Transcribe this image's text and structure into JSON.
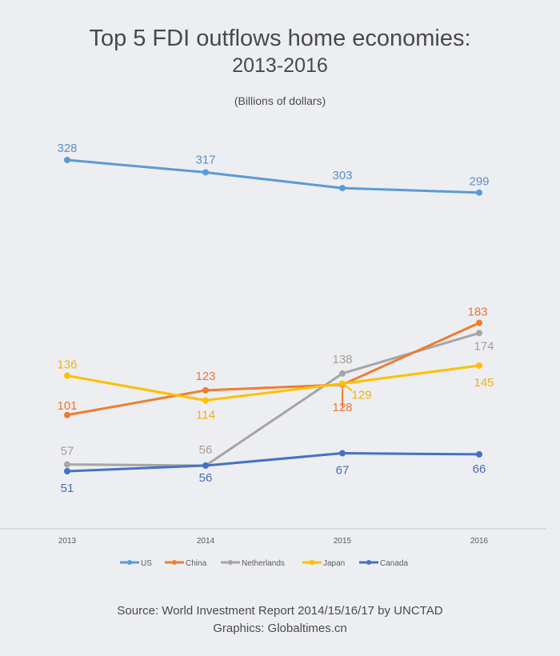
{
  "chart_data": {
    "type": "line",
    "title": "Top 5 FDI outflows home economies:",
    "title_line2": "2013-2016",
    "subtitle": "(Billions of dollars)",
    "xlabel": "",
    "ylabel": "",
    "categories": [
      "2013",
      "2014",
      "2015",
      "2016"
    ],
    "ylim": [
      51,
      328
    ],
    "grid": false,
    "legend_position": "bottom",
    "series": [
      {
        "name": "US",
        "color": "#5b9bd5",
        "values": [
          328,
          317,
          303,
          299
        ]
      },
      {
        "name": "China",
        "color": "#ed7d31",
        "values": [
          101,
          123,
          128,
          183
        ]
      },
      {
        "name": "Netherlands",
        "color": "#a5a5a5",
        "values": [
          57,
          56,
          138,
          174
        ]
      },
      {
        "name": "Japan",
        "color": "#ffc000",
        "values": [
          136,
          114,
          129,
          145
        ]
      },
      {
        "name": "Canada",
        "color": "#4472c4",
        "values": [
          51,
          56,
          67,
          66
        ]
      }
    ],
    "label_colors": {
      "US": "#5b8fc9",
      "China": "#e8763a",
      "Netherlands": "#a39e9a",
      "Japan": "#f5b20a",
      "Canada": "#4a6db5"
    }
  },
  "footer": {
    "source": "Source: World Investment Report 2014/15/16/17 by UNCTAD",
    "graphics": "Graphics: Globaltimes.cn"
  }
}
